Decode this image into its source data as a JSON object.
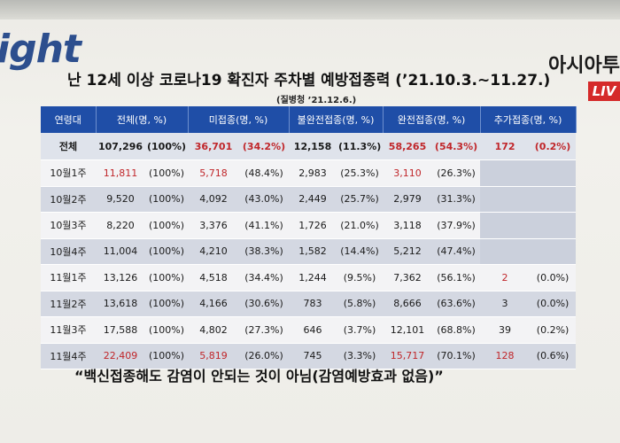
{
  "brand": {
    "left_logo": "ight",
    "right_logo": "아시아투",
    "live_badge": "LIV"
  },
  "title": "난 12세 이상 코로나19 확진자 주차별 예방접종력 (’21.10.3.~11.27.)",
  "subtitle": "(질병청 ’21.12.6.)",
  "table": {
    "headers": [
      "연령대",
      "전체(명, %)",
      "미접종(명, %)",
      "불완전접종(명, %)",
      "완전접종(명, %)",
      "추가접종(명, %)"
    ],
    "rows": [
      {
        "label": "전체",
        "total": "107,296",
        "total_pct": "(100%)",
        "unvax": "36,701",
        "unvax_pct": "(34.2%)",
        "partial": "12,158",
        "partial_pct": "(11.3%)",
        "full": "58,265",
        "full_pct": "(54.3%)",
        "booster": "172",
        "booster_pct": "(0.2%)"
      },
      {
        "label": "10월1주",
        "total": "11,811",
        "total_pct": "(100%)",
        "unvax": "5,718",
        "unvax_pct": "(48.4%)",
        "partial": "2,983",
        "partial_pct": "(25.3%)",
        "full": "3,110",
        "full_pct": "(26.3%)",
        "booster": "",
        "booster_pct": ""
      },
      {
        "label": "10월2주",
        "total": "9,520",
        "total_pct": "(100%)",
        "unvax": "4,092",
        "unvax_pct": "(43.0%)",
        "partial": "2,449",
        "partial_pct": "(25.7%)",
        "full": "2,979",
        "full_pct": "(31.3%)",
        "booster": "",
        "booster_pct": ""
      },
      {
        "label": "10월3주",
        "total": "8,220",
        "total_pct": "(100%)",
        "unvax": "3,376",
        "unvax_pct": "(41.1%)",
        "partial": "1,726",
        "partial_pct": "(21.0%)",
        "full": "3,118",
        "full_pct": "(37.9%)",
        "booster": "",
        "booster_pct": ""
      },
      {
        "label": "10월4주",
        "total": "11,004",
        "total_pct": "(100%)",
        "unvax": "4,210",
        "unvax_pct": "(38.3%)",
        "partial": "1,582",
        "partial_pct": "(14.4%)",
        "full": "5,212",
        "full_pct": "(47.4%)",
        "booster": "",
        "booster_pct": ""
      },
      {
        "label": "11월1주",
        "total": "13,126",
        "total_pct": "(100%)",
        "unvax": "4,518",
        "unvax_pct": "(34.4%)",
        "partial": "1,244",
        "partial_pct": "(9.5%)",
        "full": "7,362",
        "full_pct": "(56.1%)",
        "booster": "2",
        "booster_pct": "(0.0%)"
      },
      {
        "label": "11월2주",
        "total": "13,618",
        "total_pct": "(100%)",
        "unvax": "4,166",
        "unvax_pct": "(30.6%)",
        "partial": "783",
        "partial_pct": "(5.8%)",
        "full": "8,666",
        "full_pct": "(63.6%)",
        "booster": "3",
        "booster_pct": "(0.0%)"
      },
      {
        "label": "11월3주",
        "total": "17,588",
        "total_pct": "(100%)",
        "unvax": "4,802",
        "unvax_pct": "(27.3%)",
        "partial": "646",
        "partial_pct": "(3.7%)",
        "full": "12,101",
        "full_pct": "(68.8%)",
        "booster": "39",
        "booster_pct": "(0.2%)"
      },
      {
        "label": "11월4주",
        "total": "22,409",
        "total_pct": "(100%)",
        "unvax": "5,819",
        "unvax_pct": "(26.0%)",
        "partial": "745",
        "partial_pct": "(3.3%)",
        "full": "15,717",
        "full_pct": "(70.1%)",
        "booster": "128",
        "booster_pct": "(0.6%)"
      }
    ]
  },
  "quote": "“백신접종해도 감염이 안되는 것이 아님(감염예방효과 없음)”",
  "colors": {
    "header_blue": "#1f4ea7",
    "highlight_red": "#c0262a",
    "live_red": "#d52a2a"
  }
}
